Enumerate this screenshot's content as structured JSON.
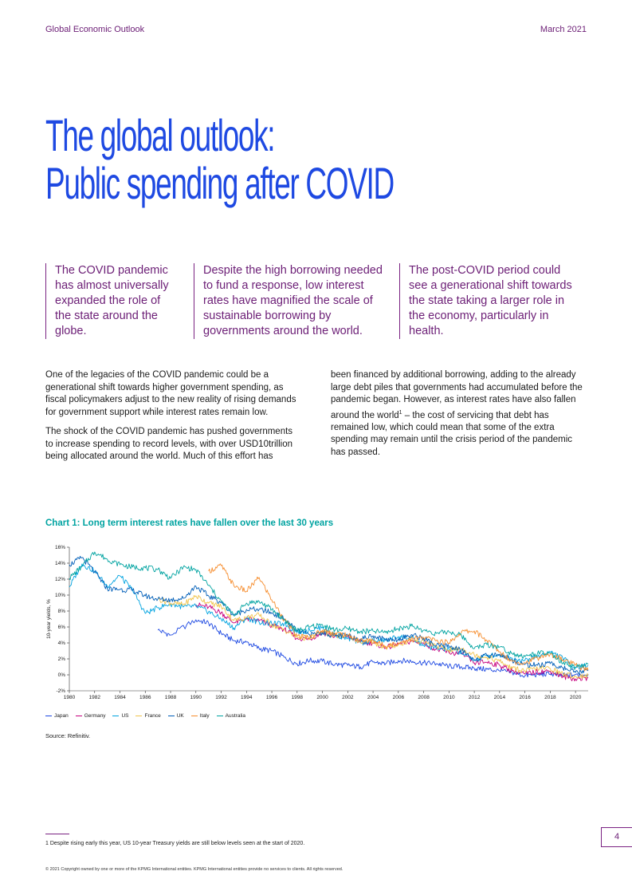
{
  "header": {
    "left": "Global Economic Outlook",
    "right": "March 2021"
  },
  "title": {
    "line1": "The global outlook:",
    "line2": "Public spending after COVID"
  },
  "callouts": [
    "The COVID pandemic has almost universally expanded the role of the state around the globe.",
    "Despite the high borrowing needed to fund a response, low interest rates have magnified the scale of sustainable borrowing by governments around the world.",
    "The post-COVID period could see a generational shift towards the state taking a larger role in the economy, particularly in health."
  ],
  "body": {
    "left_p1": "One of the legacies of the COVID pandemic could be a generational shift towards higher government spending, as fiscal policymakers adjust to the new reality of rising demands for government support while interest rates remain low.",
    "left_p2": "The shock of the COVID pandemic has pushed governments to increase spending to record levels, with over USD10trillion being allocated around the world. Much of this effort has",
    "right_p1_a": "been financed by additional borrowing, adding to the already large debt piles that governments had accumulated before the pandemic began. However, as interest rates have also fallen around the world",
    "right_p1_sup": "1",
    "right_p1_b": " – the cost of servicing that debt has remained low, which could mean that some of the extra spending may remain until the crisis period of the pandemic has passed."
  },
  "chart_title": "Chart 1: Long term interest rates have fallen over the last 30 years",
  "chart_data": {
    "type": "line",
    "title": "Chart 1: Long term interest rates have fallen over the last 30 years",
    "xlabel": "",
    "ylabel": "10-year yields, %",
    "xlim": [
      1980,
      2021
    ],
    "ylim": [
      -2,
      16
    ],
    "x_ticks": [
      "1980",
      "1982",
      "1984",
      "1986",
      "1988",
      "1990",
      "1992",
      "1994",
      "1996",
      "1998",
      "2000",
      "2002",
      "2004",
      "2006",
      "2008",
      "2010",
      "2012",
      "2014",
      "2016",
      "2018",
      "2020"
    ],
    "y_ticks": [
      "-2%",
      "0%",
      "2%",
      "4%",
      "6%",
      "8%",
      "10%",
      "12%",
      "14%",
      "16%"
    ],
    "legend_position": "bottom",
    "grid": false,
    "series": [
      {
        "name": "Japan",
        "color": "#1e49e2",
        "points": [
          [
            1987,
            5.6
          ],
          [
            1988,
            5.0
          ],
          [
            1990,
            6.9
          ],
          [
            1991,
            6.5
          ],
          [
            1992,
            5.2
          ],
          [
            1993,
            4.3
          ],
          [
            1994,
            4.1
          ],
          [
            1995,
            3.3
          ],
          [
            1996,
            3.0
          ],
          [
            1997,
            2.2
          ],
          [
            1998,
            1.4
          ],
          [
            1999,
            1.8
          ],
          [
            2000,
            1.7
          ],
          [
            2001,
            1.3
          ],
          [
            2002,
            1.2
          ],
          [
            2003,
            1.0
          ],
          [
            2004,
            1.6
          ],
          [
            2005,
            1.4
          ],
          [
            2006,
            1.8
          ],
          [
            2007,
            1.7
          ],
          [
            2008,
            1.5
          ],
          [
            2009,
            1.4
          ],
          [
            2010,
            1.1
          ],
          [
            2011,
            1.0
          ],
          [
            2012,
            0.8
          ],
          [
            2013,
            0.7
          ],
          [
            2014,
            0.5
          ],
          [
            2015,
            0.3
          ],
          [
            2016,
            -0.1
          ],
          [
            2017,
            0.05
          ],
          [
            2018,
            0.08
          ],
          [
            2019,
            -0.1
          ],
          [
            2020,
            0.02
          ],
          [
            2021,
            0.1
          ]
        ]
      },
      {
        "name": "Germany",
        "color": "#c6007e",
        "points": [
          [
            1990,
            8.8
          ],
          [
            1991,
            8.5
          ],
          [
            1992,
            7.8
          ],
          [
            1993,
            6.5
          ],
          [
            1994,
            7.0
          ],
          [
            1995,
            6.8
          ],
          [
            1996,
            6.2
          ],
          [
            1997,
            5.7
          ],
          [
            1998,
            4.6
          ],
          [
            1999,
            4.5
          ],
          [
            2000,
            5.3
          ],
          [
            2001,
            4.8
          ],
          [
            2002,
            4.8
          ],
          [
            2003,
            4.1
          ],
          [
            2004,
            4.0
          ],
          [
            2005,
            3.4
          ],
          [
            2006,
            3.8
          ],
          [
            2007,
            4.2
          ],
          [
            2008,
            4.0
          ],
          [
            2009,
            3.2
          ],
          [
            2010,
            2.8
          ],
          [
            2011,
            2.6
          ],
          [
            2012,
            1.5
          ],
          [
            2013,
            1.6
          ],
          [
            2014,
            1.2
          ],
          [
            2015,
            0.5
          ],
          [
            2016,
            0.1
          ],
          [
            2017,
            0.4
          ],
          [
            2018,
            0.45
          ],
          [
            2019,
            -0.2
          ],
          [
            2020,
            -0.5
          ],
          [
            2021,
            -0.4
          ]
        ]
      },
      {
        "name": "US",
        "color": "#00a3e0",
        "points": [
          [
            1980,
            11.0
          ],
          [
            1981,
            13.9
          ],
          [
            1982,
            13.0
          ],
          [
            1983,
            11.1
          ],
          [
            1984,
            12.4
          ],
          [
            1985,
            10.6
          ],
          [
            1986,
            7.7
          ],
          [
            1987,
            8.4
          ],
          [
            1988,
            8.9
          ],
          [
            1989,
            8.5
          ],
          [
            1990,
            8.6
          ],
          [
            1991,
            7.9
          ],
          [
            1992,
            7.0
          ],
          [
            1993,
            5.9
          ],
          [
            1994,
            7.1
          ],
          [
            1995,
            6.6
          ],
          [
            1996,
            6.4
          ],
          [
            1997,
            6.4
          ],
          [
            1998,
            5.3
          ],
          [
            1999,
            5.6
          ],
          [
            2000,
            6.0
          ],
          [
            2001,
            5.0
          ],
          [
            2002,
            4.6
          ],
          [
            2003,
            4.0
          ],
          [
            2004,
            4.3
          ],
          [
            2005,
            4.3
          ],
          [
            2006,
            4.8
          ],
          [
            2007,
            4.6
          ],
          [
            2008,
            3.7
          ],
          [
            2009,
            3.3
          ],
          [
            2010,
            3.2
          ],
          [
            2011,
            2.8
          ],
          [
            2012,
            1.8
          ],
          [
            2013,
            2.4
          ],
          [
            2014,
            2.5
          ],
          [
            2015,
            2.1
          ],
          [
            2016,
            1.8
          ],
          [
            2017,
            2.3
          ],
          [
            2018,
            2.9
          ],
          [
            2019,
            2.1
          ],
          [
            2020,
            0.9
          ],
          [
            2021,
            1.2
          ]
        ]
      },
      {
        "name": "France",
        "color": "#f1c44d",
        "points": [
          [
            1987,
            9.5
          ],
          [
            1988,
            9.0
          ],
          [
            1989,
            8.8
          ],
          [
            1990,
            9.9
          ],
          [
            1991,
            9.0
          ],
          [
            1992,
            8.6
          ],
          [
            1993,
            6.8
          ],
          [
            1994,
            7.2
          ],
          [
            1995,
            7.5
          ],
          [
            1996,
            6.3
          ],
          [
            1997,
            5.6
          ],
          [
            1998,
            4.7
          ],
          [
            1999,
            4.6
          ],
          [
            2000,
            5.4
          ],
          [
            2001,
            4.9
          ],
          [
            2002,
            4.9
          ],
          [
            2003,
            4.1
          ],
          [
            2004,
            4.1
          ],
          [
            2005,
            3.4
          ],
          [
            2006,
            3.8
          ],
          [
            2007,
            4.3
          ],
          [
            2008,
            4.2
          ],
          [
            2009,
            3.6
          ],
          [
            2010,
            3.1
          ],
          [
            2011,
            3.3
          ],
          [
            2012,
            2.5
          ],
          [
            2013,
            2.2
          ],
          [
            2014,
            1.7
          ],
          [
            2015,
            0.8
          ],
          [
            2016,
            0.5
          ],
          [
            2017,
            0.8
          ],
          [
            2018,
            0.8
          ],
          [
            2019,
            0.1
          ],
          [
            2020,
            -0.2
          ],
          [
            2021,
            -0.1
          ]
        ]
      },
      {
        "name": "UK",
        "color": "#005eb8",
        "points": [
          [
            1980,
            13.8
          ],
          [
            1981,
            14.7
          ],
          [
            1982,
            12.9
          ],
          [
            1983,
            10.8
          ],
          [
            1984,
            10.7
          ],
          [
            1985,
            10.6
          ],
          [
            1986,
            9.9
          ],
          [
            1987,
            9.5
          ],
          [
            1988,
            9.4
          ],
          [
            1989,
            9.6
          ],
          [
            1990,
            11.1
          ],
          [
            1991,
            9.9
          ],
          [
            1992,
            9.1
          ],
          [
            1993,
            7.5
          ],
          [
            1994,
            8.2
          ],
          [
            1995,
            8.2
          ],
          [
            1996,
            7.8
          ],
          [
            1997,
            7.0
          ],
          [
            1998,
            5.5
          ],
          [
            1999,
            5.0
          ],
          [
            2000,
            5.3
          ],
          [
            2001,
            4.9
          ],
          [
            2002,
            4.9
          ],
          [
            2003,
            4.5
          ],
          [
            2004,
            4.9
          ],
          [
            2005,
            4.4
          ],
          [
            2006,
            4.5
          ],
          [
            2007,
            5.0
          ],
          [
            2008,
            4.6
          ],
          [
            2009,
            3.6
          ],
          [
            2010,
            3.6
          ],
          [
            2011,
            3.1
          ],
          [
            2012,
            1.9
          ],
          [
            2013,
            2.4
          ],
          [
            2014,
            2.6
          ],
          [
            2015,
            1.8
          ],
          [
            2016,
            1.3
          ],
          [
            2017,
            1.2
          ],
          [
            2018,
            1.4
          ],
          [
            2019,
            0.9
          ],
          [
            2020,
            0.3
          ],
          [
            2021,
            0.5
          ]
        ]
      },
      {
        "name": "Italy",
        "color": "#f68d2e",
        "points": [
          [
            1991,
            13.0
          ],
          [
            1992,
            13.7
          ],
          [
            1993,
            11.2
          ],
          [
            1994,
            10.5
          ],
          [
            1995,
            12.2
          ],
          [
            1996,
            9.4
          ],
          [
            1997,
            6.9
          ],
          [
            1998,
            4.9
          ],
          [
            1999,
            4.7
          ],
          [
            2000,
            5.6
          ],
          [
            2001,
            5.2
          ],
          [
            2002,
            5.0
          ],
          [
            2003,
            4.3
          ],
          [
            2004,
            4.3
          ],
          [
            2005,
            3.6
          ],
          [
            2006,
            4.0
          ],
          [
            2007,
            4.5
          ],
          [
            2008,
            4.7
          ],
          [
            2009,
            4.3
          ],
          [
            2010,
            4.0
          ],
          [
            2011,
            5.4
          ],
          [
            2012,
            5.5
          ],
          [
            2013,
            4.3
          ],
          [
            2014,
            2.9
          ],
          [
            2015,
            1.7
          ],
          [
            2016,
            1.5
          ],
          [
            2017,
            2.1
          ],
          [
            2018,
            2.6
          ],
          [
            2019,
            1.9
          ],
          [
            2020,
            1.2
          ],
          [
            2021,
            0.6
          ]
        ]
      },
      {
        "name": "Australia",
        "color": "#00a3a1",
        "points": [
          [
            1980,
            12.1
          ],
          [
            1981,
            13.6
          ],
          [
            1982,
            15.4
          ],
          [
            1983,
            14.5
          ],
          [
            1984,
            13.8
          ],
          [
            1985,
            13.5
          ],
          [
            1986,
            13.4
          ],
          [
            1987,
            13.2
          ],
          [
            1988,
            12.1
          ],
          [
            1989,
            13.5
          ],
          [
            1990,
            13.2
          ],
          [
            1991,
            11.2
          ],
          [
            1992,
            9.2
          ],
          [
            1993,
            7.4
          ],
          [
            1994,
            9.0
          ],
          [
            1995,
            9.2
          ],
          [
            1996,
            8.2
          ],
          [
            1997,
            6.9
          ],
          [
            1998,
            5.5
          ],
          [
            1999,
            6.0
          ],
          [
            2000,
            6.3
          ],
          [
            2001,
            5.6
          ],
          [
            2002,
            5.8
          ],
          [
            2003,
            5.4
          ],
          [
            2004,
            5.5
          ],
          [
            2005,
            5.3
          ],
          [
            2006,
            5.8
          ],
          [
            2007,
            6.1
          ],
          [
            2008,
            5.6
          ],
          [
            2009,
            5.2
          ],
          [
            2010,
            5.4
          ],
          [
            2011,
            4.9
          ],
          [
            2012,
            3.3
          ],
          [
            2013,
            3.8
          ],
          [
            2014,
            3.5
          ],
          [
            2015,
            2.7
          ],
          [
            2016,
            2.3
          ],
          [
            2017,
            2.7
          ],
          [
            2018,
            2.7
          ],
          [
            2019,
            1.4
          ],
          [
            2020,
            0.9
          ],
          [
            2021,
            1.3
          ]
        ]
      }
    ]
  },
  "source": "Source: Refinitiv.",
  "footnote": "1  Despite rising early this year, US 10-year Treasury yields are still below levels seen at the start of 2020.",
  "page_number": "4",
  "copyright": "© 2021 Copyright owned by one or more of the KPMG International entities. KPMG International entities provide no services to clients. All rights reserved."
}
